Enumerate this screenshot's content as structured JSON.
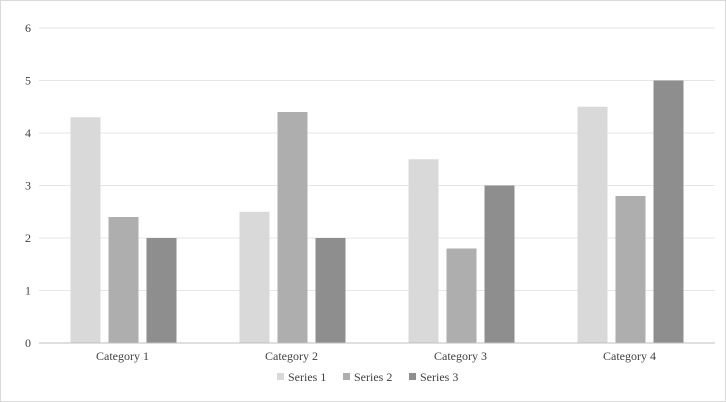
{
  "chart_data": {
    "type": "bar",
    "categories": [
      "Category 1",
      "Category 2",
      "Category 3",
      "Category 4"
    ],
    "series": [
      {
        "name": "Series 1",
        "color": "#d9d9d9",
        "values": [
          4.3,
          2.5,
          3.5,
          4.5
        ]
      },
      {
        "name": "Series 2",
        "color": "#aeaeae",
        "values": [
          2.4,
          4.4,
          1.8,
          2.8
        ]
      },
      {
        "name": "Series 3",
        "color": "#8e8e8e",
        "values": [
          2,
          2,
          3,
          5
        ]
      }
    ],
    "ylim": [
      0,
      6
    ],
    "yticks": [
      0,
      1,
      2,
      3,
      4,
      5,
      6
    ],
    "grid": true,
    "legend_position": "bottom",
    "title": "",
    "xlabel": "",
    "ylabel": ""
  }
}
